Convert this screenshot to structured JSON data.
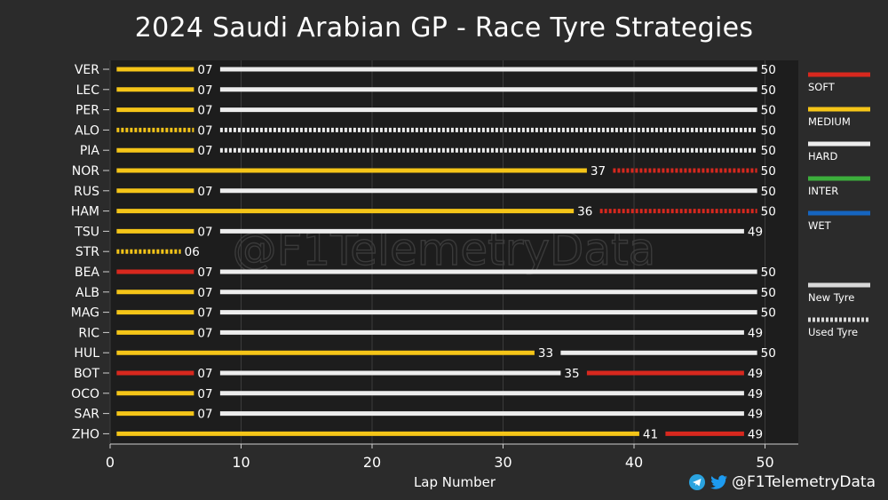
{
  "title": "2024 Saudi Arabian GP - Race Tyre Strategies",
  "watermark": "@F1TelemetryData",
  "footer": {
    "handle": "@F1TelemetryData",
    "icons": [
      "telegram-icon",
      "twitter-icon"
    ]
  },
  "colors": {
    "SOFT": "#d8281e",
    "MEDIUM": "#f5c518",
    "HARD": "#ededed",
    "INTER": "#3cae3c",
    "WET": "#1565c0",
    "background": "#2b2b2b",
    "plot_background": "#1d1d1d"
  },
  "chart_data": {
    "type": "bar",
    "orientation": "horizontal-stacked",
    "xlabel": "Lap Number",
    "ylabel": "",
    "xlim": [
      0,
      52.5
    ],
    "xticks": [
      0,
      10,
      20,
      30,
      40,
      50
    ],
    "grid": true,
    "legend": {
      "placement": "right",
      "compounds": [
        "SOFT",
        "MEDIUM",
        "HARD",
        "INTER",
        "WET"
      ],
      "styles": [
        {
          "key": "new",
          "label": "New Tyre"
        },
        {
          "key": "used",
          "label": "Used Tyre"
        }
      ]
    },
    "drivers": [
      {
        "code": "VER",
        "stints": [
          {
            "compound": "MEDIUM",
            "new": true,
            "start": 0,
            "end": 7,
            "label": "07"
          },
          {
            "compound": "HARD",
            "new": true,
            "start": 7,
            "end": 50,
            "label": "50"
          }
        ]
      },
      {
        "code": "LEC",
        "stints": [
          {
            "compound": "MEDIUM",
            "new": true,
            "start": 0,
            "end": 7,
            "label": "07"
          },
          {
            "compound": "HARD",
            "new": true,
            "start": 7,
            "end": 50,
            "label": "50"
          }
        ]
      },
      {
        "code": "PER",
        "stints": [
          {
            "compound": "MEDIUM",
            "new": true,
            "start": 0,
            "end": 7,
            "label": "07"
          },
          {
            "compound": "HARD",
            "new": true,
            "start": 7,
            "end": 50,
            "label": "50"
          }
        ]
      },
      {
        "code": "ALO",
        "stints": [
          {
            "compound": "MEDIUM",
            "new": false,
            "start": 0,
            "end": 7,
            "label": "07"
          },
          {
            "compound": "HARD",
            "new": false,
            "start": 7,
            "end": 50,
            "label": "50"
          }
        ]
      },
      {
        "code": "PIA",
        "stints": [
          {
            "compound": "MEDIUM",
            "new": true,
            "start": 0,
            "end": 7,
            "label": "07"
          },
          {
            "compound": "HARD",
            "new": false,
            "start": 7,
            "end": 50,
            "label": "50"
          }
        ]
      },
      {
        "code": "NOR",
        "stints": [
          {
            "compound": "MEDIUM",
            "new": true,
            "start": 0,
            "end": 37,
            "label": "37"
          },
          {
            "compound": "SOFT",
            "new": false,
            "start": 37,
            "end": 50,
            "label": "50"
          }
        ]
      },
      {
        "code": "RUS",
        "stints": [
          {
            "compound": "MEDIUM",
            "new": true,
            "start": 0,
            "end": 7,
            "label": "07"
          },
          {
            "compound": "HARD",
            "new": true,
            "start": 7,
            "end": 50,
            "label": "50"
          }
        ]
      },
      {
        "code": "HAM",
        "stints": [
          {
            "compound": "MEDIUM",
            "new": true,
            "start": 0,
            "end": 36,
            "label": "36"
          },
          {
            "compound": "SOFT",
            "new": false,
            "start": 36,
            "end": 50,
            "label": "50"
          }
        ]
      },
      {
        "code": "TSU",
        "stints": [
          {
            "compound": "MEDIUM",
            "new": true,
            "start": 0,
            "end": 7,
            "label": "07"
          },
          {
            "compound": "HARD",
            "new": true,
            "start": 7,
            "end": 49,
            "label": "49"
          }
        ]
      },
      {
        "code": "STR",
        "stints": [
          {
            "compound": "MEDIUM",
            "new": false,
            "start": 0,
            "end": 6,
            "label": "06"
          }
        ]
      },
      {
        "code": "BEA",
        "stints": [
          {
            "compound": "SOFT",
            "new": true,
            "start": 0,
            "end": 7,
            "label": "07"
          },
          {
            "compound": "HARD",
            "new": true,
            "start": 7,
            "end": 50,
            "label": "50"
          }
        ]
      },
      {
        "code": "ALB",
        "stints": [
          {
            "compound": "MEDIUM",
            "new": true,
            "start": 0,
            "end": 7,
            "label": "07"
          },
          {
            "compound": "HARD",
            "new": true,
            "start": 7,
            "end": 50,
            "label": "50"
          }
        ]
      },
      {
        "code": "MAG",
        "stints": [
          {
            "compound": "MEDIUM",
            "new": true,
            "start": 0,
            "end": 7,
            "label": "07"
          },
          {
            "compound": "HARD",
            "new": true,
            "start": 7,
            "end": 50,
            "label": "50"
          }
        ]
      },
      {
        "code": "RIC",
        "stints": [
          {
            "compound": "MEDIUM",
            "new": true,
            "start": 0,
            "end": 7,
            "label": "07"
          },
          {
            "compound": "HARD",
            "new": true,
            "start": 7,
            "end": 49,
            "label": "49"
          }
        ]
      },
      {
        "code": "HUL",
        "stints": [
          {
            "compound": "MEDIUM",
            "new": true,
            "start": 0,
            "end": 33,
            "label": "33"
          },
          {
            "compound": "HARD",
            "new": true,
            "start": 33,
            "end": 50,
            "label": "50"
          }
        ]
      },
      {
        "code": "BOT",
        "stints": [
          {
            "compound": "SOFT",
            "new": true,
            "start": 0,
            "end": 7,
            "label": "07"
          },
          {
            "compound": "HARD",
            "new": true,
            "start": 7,
            "end": 35,
            "label": "35"
          },
          {
            "compound": "SOFT",
            "new": true,
            "start": 35,
            "end": 49,
            "label": "49"
          }
        ]
      },
      {
        "code": "OCO",
        "stints": [
          {
            "compound": "MEDIUM",
            "new": true,
            "start": 0,
            "end": 7,
            "label": "07"
          },
          {
            "compound": "HARD",
            "new": true,
            "start": 7,
            "end": 49,
            "label": "49"
          }
        ]
      },
      {
        "code": "SAR",
        "stints": [
          {
            "compound": "MEDIUM",
            "new": true,
            "start": 0,
            "end": 7,
            "label": "07"
          },
          {
            "compound": "HARD",
            "new": true,
            "start": 7,
            "end": 49,
            "label": "49"
          }
        ]
      },
      {
        "code": "ZHO",
        "stints": [
          {
            "compound": "MEDIUM",
            "new": true,
            "start": 0,
            "end": 41,
            "label": "41"
          },
          {
            "compound": "SOFT",
            "new": true,
            "start": 41,
            "end": 49,
            "label": "49"
          }
        ]
      }
    ]
  }
}
